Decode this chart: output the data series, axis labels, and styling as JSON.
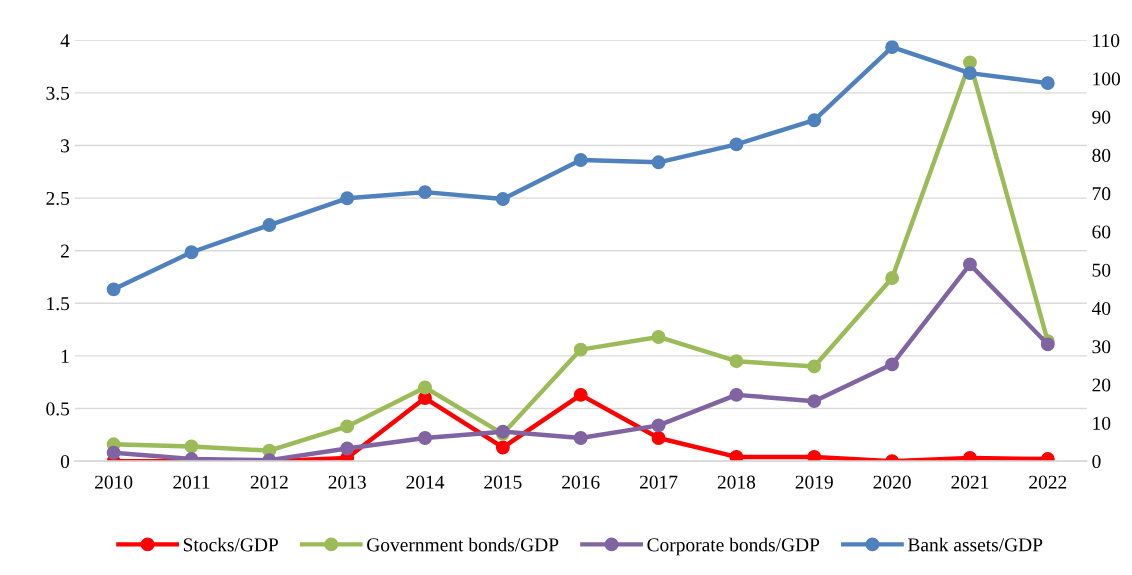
{
  "chart_data": {
    "type": "line",
    "categories": [
      "2010",
      "2011",
      "2012",
      "2013",
      "2014",
      "2015",
      "2016",
      "2017",
      "2018",
      "2019",
      "2020",
      "2021",
      "2022"
    ],
    "series": [
      {
        "name": "Stocks/GDP",
        "color": "#ff0000",
        "values": [
          0,
          0,
          0,
          0.03,
          0.6,
          0.13,
          0.63,
          0.22,
          0.04,
          0.04,
          0,
          0.03,
          0.02
        ]
      },
      {
        "name": "Government bonds/GDP",
        "color": "#9bbb59",
        "values": [
          0.16,
          0.14,
          0.1,
          0.33,
          0.7,
          0.26,
          1.06,
          1.18,
          0.95,
          0.9,
          1.74,
          3.79,
          1.14
        ]
      },
      {
        "name": "Corporate bonds/GDP",
        "color": "#8064a2",
        "values": [
          0.08,
          0.02,
          0.01,
          0.12,
          0.22,
          0.28,
          0.22,
          0.34,
          0.63,
          0.57,
          0.92,
          1.87,
          1.11
        ]
      },
      {
        "name": "Bank assets/GDP",
        "color": "#4f81bd",
        "axis": "y2",
        "values": [
          44.9,
          54.6,
          61.7,
          68.7,
          70.3,
          68.5,
          78.7,
          78.1,
          82.8,
          89.1,
          108.2,
          101.4,
          98.8
        ]
      }
    ],
    "ylim": [
      0,
      4
    ],
    "yticks": [
      0,
      0.5,
      1,
      1.5,
      2,
      2.5,
      3,
      3.5,
      4
    ],
    "y2lim": [
      0,
      110
    ],
    "y2ticks": [
      0,
      10,
      20,
      30,
      40,
      50,
      60,
      70,
      80,
      90,
      100,
      110
    ],
    "grid": "y",
    "legend": "bottom",
    "marker": "circle",
    "line_style": "solid"
  }
}
